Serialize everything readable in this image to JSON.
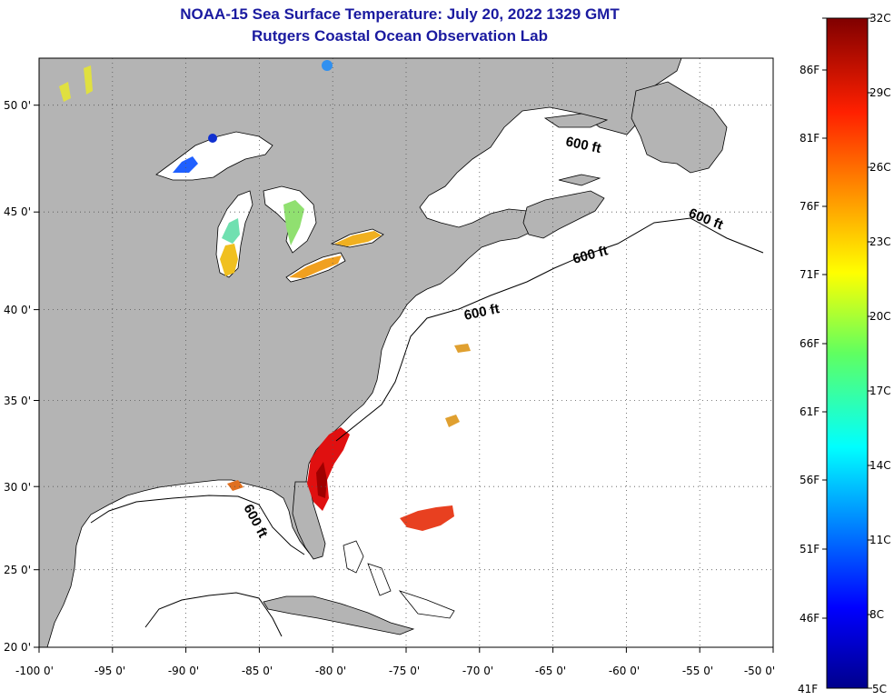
{
  "title": "NOAA-15 Sea Surface Temperature:  July 20, 2022 1329 GMT",
  "subtitle": "Rutgers Coastal Ocean Observation Lab",
  "map": {
    "lon_ticks": [
      "-100 0'",
      "-95 0'",
      "-90 0'",
      "-85 0'",
      "-80 0'",
      "-75 0'",
      "-70 0'",
      "-65 0'",
      "-60 0'",
      "-55 0'",
      "-50 0'"
    ],
    "lat_ticks": [
      "50 0'",
      "45 0'",
      "40 0'",
      "35 0'",
      "30 0'",
      "25 0'",
      "20 0'"
    ],
    "contour_labels": [
      "600 ft",
      "600 ft",
      "600 ft",
      "600 ft",
      "600 ft"
    ],
    "colors": {
      "land": "#b4b4b4",
      "ocean": "#ffffff",
      "grid": "#555555",
      "hot": "#e01010"
    }
  },
  "colorbar": {
    "f_labels": [
      "86F",
      "81F",
      "76F",
      "71F",
      "66F",
      "61F",
      "56F",
      "51F",
      "46F",
      "41F"
    ],
    "c_labels": [
      "32C",
      "29C",
      "26C",
      "23C",
      "20C",
      "17C",
      "14C",
      "11C",
      "8C",
      "5C"
    ]
  }
}
